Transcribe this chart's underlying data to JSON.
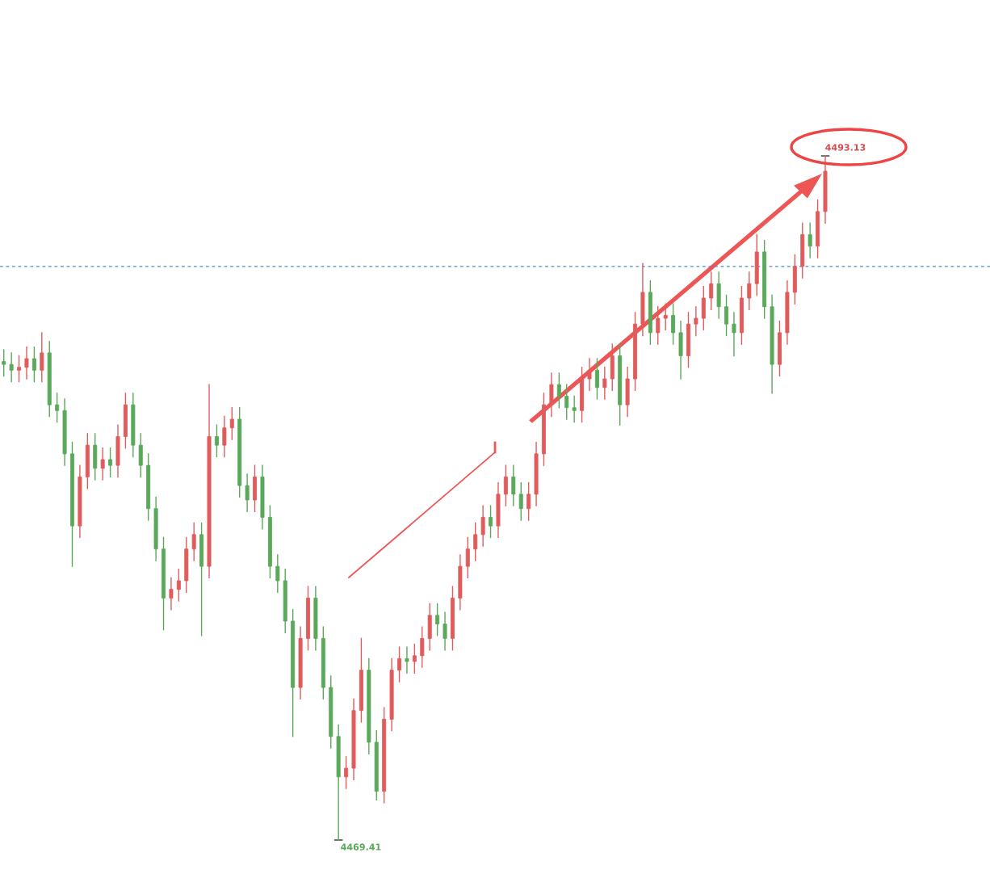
{
  "chart_data": {
    "type": "candlestick",
    "categories": [
      null,
      null,
      null,
      null,
      null,
      null,
      null,
      null,
      null,
      null,
      null,
      null,
      null,
      null,
      null,
      null,
      null,
      null,
      null,
      null,
      null,
      null,
      null,
      null,
      null,
      null,
      null,
      null,
      null,
      null,
      null,
      null,
      null,
      null,
      null,
      null,
      null,
      null,
      null,
      null,
      null,
      null,
      null,
      null,
      null,
      null,
      null,
      null,
      null,
      null,
      null,
      null,
      null,
      null,
      null,
      null,
      null,
      null,
      null,
      null,
      null,
      null,
      null,
      null,
      null,
      null,
      null,
      null,
      null,
      null,
      null,
      null,
      null,
      null,
      null,
      null,
      null,
      null,
      null,
      null,
      null,
      null,
      null,
      null,
      null,
      null,
      null,
      null,
      null,
      null,
      null,
      null,
      null,
      null,
      null,
      null,
      null,
      null,
      null,
      null,
      null,
      null,
      null,
      null,
      null,
      null,
      null,
      null,
      null
    ],
    "ohlc": [
      [
        4486.0,
        4486.4,
        4485.5,
        4485.9
      ],
      [
        4485.9,
        4486.3,
        4485.3,
        4485.7
      ],
      [
        4485.7,
        4486.2,
        4485.3,
        4485.8
      ],
      [
        4485.8,
        4486.5,
        4485.4,
        4486.1
      ],
      [
        4486.1,
        4486.5,
        4485.3,
        4485.7
      ],
      [
        4485.7,
        4487.0,
        4485.3,
        4486.3
      ],
      [
        4486.3,
        4486.7,
        4484.1,
        4484.5
      ],
      [
        4484.5,
        4484.9,
        4483.9,
        4484.3
      ],
      [
        4484.3,
        4484.7,
        4482.4,
        4482.8
      ],
      [
        4482.8,
        4483.2,
        4478.9,
        4480.3
      ],
      [
        4480.3,
        4482.4,
        4479.9,
        4482.0
      ],
      [
        4482.0,
        4483.5,
        4481.6,
        4483.1
      ],
      [
        4483.1,
        4483.5,
        4481.9,
        4482.3
      ],
      [
        4482.3,
        4483.0,
        4481.9,
        4482.6
      ],
      [
        4482.6,
        4483.0,
        4482.0,
        4482.4
      ],
      [
        4482.4,
        4483.8,
        4482.0,
        4483.4
      ],
      [
        4483.4,
        4484.9,
        4483.0,
        4484.5
      ],
      [
        4484.5,
        4484.9,
        4482.7,
        4483.1
      ],
      [
        4483.1,
        4483.5,
        4482.0,
        4482.4
      ],
      [
        4482.4,
        4482.8,
        4480.5,
        4480.9
      ],
      [
        4480.9,
        4481.3,
        4479.1,
        4479.5
      ],
      [
        4479.5,
        4479.9,
        4476.7,
        4477.8
      ],
      [
        4477.8,
        4478.5,
        4477.4,
        4478.1
      ],
      [
        4478.1,
        4478.8,
        4477.7,
        4478.4
      ],
      [
        4478.4,
        4479.9,
        4478.0,
        4479.5
      ],
      [
        4479.5,
        4480.4,
        4479.1,
        4480.0
      ],
      [
        4480.0,
        4480.4,
        4476.5,
        4478.9
      ],
      [
        4478.9,
        4485.2,
        4478.5,
        4483.4
      ],
      [
        4483.4,
        4483.8,
        4482.7,
        4483.1
      ],
      [
        4483.1,
        4484.1,
        4482.7,
        4483.7
      ],
      [
        4483.7,
        4484.4,
        4483.3,
        4484.0
      ],
      [
        4484.0,
        4484.4,
        4481.3,
        4481.7
      ],
      [
        4481.7,
        4482.1,
        4480.8,
        4481.2
      ],
      [
        4481.2,
        4482.4,
        4480.8,
        4482.0
      ],
      [
        4482.0,
        4482.4,
        4480.2,
        4480.6
      ],
      [
        4480.6,
        4481.0,
        4478.5,
        4478.9
      ],
      [
        4478.9,
        4479.3,
        4478.0,
        4478.4
      ],
      [
        4478.4,
        4478.8,
        4476.6,
        4477.0
      ],
      [
        4477.0,
        4477.4,
        4473.0,
        4474.7
      ],
      [
        4474.7,
        4476.8,
        4474.3,
        4476.4
      ],
      [
        4476.4,
        4478.2,
        4476.0,
        4477.8
      ],
      [
        4477.8,
        4478.2,
        4476.0,
        4476.4
      ],
      [
        4476.4,
        4476.8,
        4474.3,
        4474.7
      ],
      [
        4474.7,
        4475.1,
        4472.6,
        4473.0
      ],
      [
        4473.0,
        4473.4,
        4469.41,
        4471.6
      ],
      [
        4471.6,
        4472.3,
        4471.2,
        4471.9
      ],
      [
        4471.9,
        4474.3,
        4471.5,
        4473.9
      ],
      [
        4473.9,
        4476.4,
        4473.5,
        4475.3
      ],
      [
        4475.3,
        4475.7,
        4472.4,
        4472.8
      ],
      [
        4472.8,
        4473.2,
        4470.8,
        4471.1
      ],
      [
        4471.1,
        4474.0,
        4470.7,
        4473.6
      ],
      [
        4473.6,
        4475.7,
        4473.2,
        4475.3
      ],
      [
        4475.3,
        4476.1,
        4474.9,
        4475.7
      ],
      [
        4475.7,
        4476.1,
        4475.2,
        4475.6
      ],
      [
        4475.6,
        4476.2,
        4475.2,
        4475.8
      ],
      [
        4475.8,
        4476.8,
        4475.4,
        4476.4
      ],
      [
        4476.4,
        4477.6,
        4476.0,
        4477.2
      ],
      [
        4477.2,
        4477.6,
        4476.5,
        4476.9
      ],
      [
        4476.9,
        4477.3,
        4476.0,
        4476.4
      ],
      [
        4476.4,
        4478.2,
        4476.0,
        4477.8
      ],
      [
        4477.8,
        4479.3,
        4477.4,
        4478.9
      ],
      [
        4478.9,
        4479.9,
        4478.5,
        4479.5
      ],
      [
        4479.5,
        4480.4,
        4479.1,
        4480.0
      ],
      [
        4480.0,
        4481.0,
        4479.6,
        4480.6
      ],
      [
        4480.6,
        4481.0,
        4479.9,
        4480.3
      ],
      [
        4480.3,
        4481.8,
        4479.9,
        4481.4
      ],
      [
        4481.4,
        4482.4,
        4481.0,
        4482.0
      ],
      [
        4482.0,
        4482.4,
        4481.0,
        4481.4
      ],
      [
        4481.4,
        4481.8,
        4480.5,
        4480.9
      ],
      [
        4480.9,
        4481.8,
        4480.5,
        4481.4
      ],
      [
        4481.4,
        4483.2,
        4481.0,
        4482.8
      ],
      [
        4482.8,
        4484.9,
        4482.4,
        4484.5
      ],
      [
        4484.5,
        4485.6,
        4484.1,
        4485.2
      ],
      [
        4485.2,
        4485.6,
        4484.4,
        4484.8
      ],
      [
        4484.8,
        4485.2,
        4484.0,
        4484.4
      ],
      [
        4484.4,
        4484.8,
        4483.9,
        4484.3
      ],
      [
        4484.3,
        4485.8,
        4483.9,
        4485.4
      ],
      [
        4485.4,
        4486.1,
        4485.0,
        4485.7
      ],
      [
        4485.7,
        4486.1,
        4484.7,
        4485.1
      ],
      [
        4485.1,
        4485.8,
        4484.7,
        4485.4
      ],
      [
        4485.4,
        4486.6,
        4485.0,
        4486.2
      ],
      [
        4486.2,
        4486.6,
        4483.8,
        4484.5
      ],
      [
        4484.5,
        4485.8,
        4484.1,
        4485.4
      ],
      [
        4485.4,
        4487.7,
        4485.0,
        4487.3
      ],
      [
        4487.3,
        4489.4,
        4486.9,
        4488.4
      ],
      [
        4488.4,
        4488.8,
        4486.6,
        4487.0
      ],
      [
        4487.0,
        4487.9,
        4486.6,
        4487.5
      ],
      [
        4487.5,
        4488.0,
        4487.1,
        4487.6
      ],
      [
        4487.6,
        4488.0,
        4486.6,
        4487.0
      ],
      [
        4487.0,
        4487.4,
        4485.4,
        4486.2
      ],
      [
        4486.2,
        4487.7,
        4485.8,
        4487.3
      ],
      [
        4487.3,
        4487.9,
        4486.9,
        4487.5
      ],
      [
        4487.5,
        4488.6,
        4487.1,
        4488.2
      ],
      [
        4488.2,
        4489.1,
        4487.8,
        4488.7
      ],
      [
        4488.7,
        4489.1,
        4487.5,
        4487.9
      ],
      [
        4487.9,
        4488.3,
        4486.9,
        4487.3
      ],
      [
        4487.3,
        4487.7,
        4486.2,
        4487.0
      ],
      [
        4487.0,
        4488.6,
        4486.6,
        4488.2
      ],
      [
        4488.2,
        4489.1,
        4487.8,
        4488.7
      ],
      [
        4488.7,
        4490.4,
        4488.3,
        4489.8
      ],
      [
        4489.8,
        4490.2,
        4487.5,
        4487.9
      ],
      [
        4487.9,
        4488.3,
        4484.9,
        4485.9
      ],
      [
        4485.9,
        4487.4,
        4485.5,
        4487.0
      ],
      [
        4487.0,
        4488.8,
        4486.6,
        4488.4
      ],
      [
        4488.4,
        4489.7,
        4488.0,
        4489.3
      ],
      [
        4489.3,
        4490.8,
        4488.9,
        4490.4
      ],
      [
        4490.4,
        4490.8,
        4489.6,
        4490.0
      ],
      [
        4490.0,
        4491.6,
        4489.6,
        4491.2
      ],
      [
        4491.2,
        4493.13,
        4490.8,
        4492.6
      ]
    ],
    "ref_lines": [
      {
        "axis": "y",
        "value": 4489.3,
        "color": "#4a8fc4",
        "line_style": "dashed"
      }
    ],
    "annotations": [
      "4493.13",
      "4469.41"
    ]
  }
}
